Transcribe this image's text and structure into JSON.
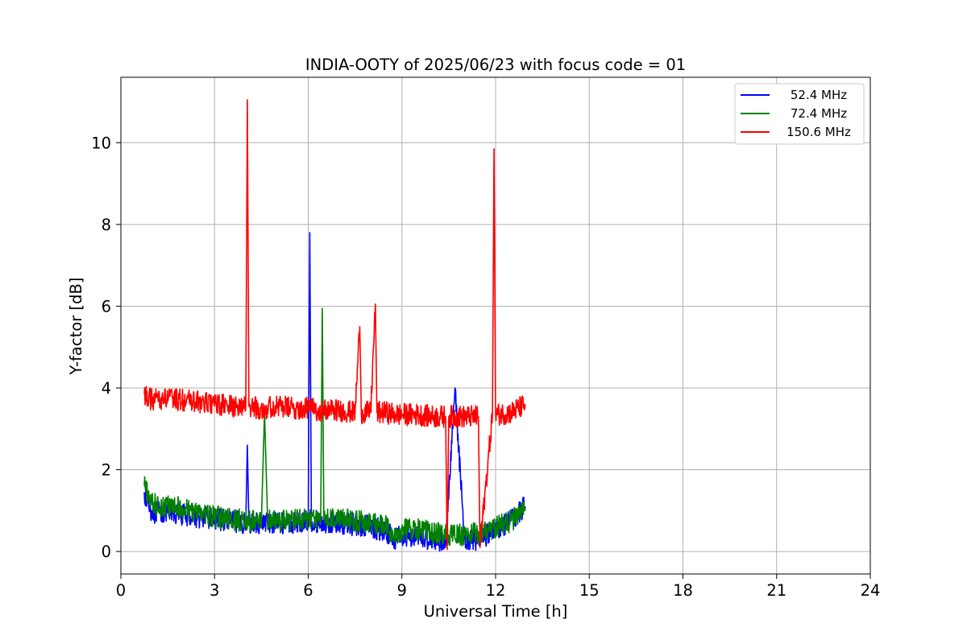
{
  "chart_data": {
    "type": "line",
    "title": "INDIA-OOTY of 2025/06/23 with focus code = 01",
    "xlabel": "Universal Time [h]",
    "ylabel": "Y-factor [dB]",
    "xlim": [
      0,
      24
    ],
    "ylim": [
      -0.55,
      11.6
    ],
    "xticks": [
      0,
      3,
      6,
      9,
      12,
      15,
      18,
      21,
      24
    ],
    "yticks": [
      0,
      2,
      4,
      6,
      8,
      10
    ],
    "grid": true,
    "legend_position": "top-right",
    "series": [
      {
        "name": "52.4 MHz",
        "color": "#0000ff",
        "x": [
          0.75,
          1.0,
          1.5,
          2.0,
          2.5,
          3.0,
          3.5,
          4.0,
          4.05,
          4.1,
          4.5,
          5.0,
          5.5,
          6.0,
          6.05,
          6.1,
          6.5,
          7.0,
          7.5,
          8.0,
          8.5,
          8.8,
          9.0,
          9.5,
          10.0,
          10.4,
          10.7,
          11.0,
          11.5,
          12.0,
          12.5,
          12.95
        ],
        "y": [
          1.45,
          0.95,
          0.95,
          0.9,
          0.85,
          0.8,
          0.75,
          0.7,
          2.6,
          0.7,
          0.7,
          0.7,
          0.7,
          0.75,
          7.8,
          0.75,
          0.7,
          0.7,
          0.65,
          0.6,
          0.5,
          0.3,
          0.4,
          0.35,
          0.3,
          0.25,
          4.0,
          0.3,
          0.3,
          0.55,
          0.75,
          1.1
        ]
      },
      {
        "name": "72.4 MHz",
        "color": "#008000",
        "x": [
          0.75,
          1.0,
          1.5,
          2.0,
          2.5,
          3.0,
          3.5,
          4.0,
          4.5,
          4.6,
          4.7,
          5.0,
          5.5,
          6.0,
          6.4,
          6.45,
          6.5,
          7.0,
          7.5,
          8.0,
          8.5,
          8.8,
          9.0,
          9.5,
          10.0,
          10.5,
          11.0,
          11.5,
          12.0,
          12.5,
          12.95
        ],
        "y": [
          1.6,
          1.15,
          1.1,
          1.05,
          0.95,
          0.85,
          0.8,
          0.75,
          0.75,
          3.4,
          0.75,
          0.75,
          0.75,
          0.8,
          0.8,
          5.95,
          0.8,
          0.8,
          0.75,
          0.7,
          0.6,
          0.3,
          0.55,
          0.55,
          0.45,
          0.4,
          0.4,
          0.45,
          0.6,
          0.75,
          1.0
        ]
      },
      {
        "name": "150.6 MHz",
        "color": "#ff0000",
        "x": [
          0.75,
          1.0,
          1.5,
          2.0,
          2.5,
          3.0,
          3.5,
          4.0,
          4.05,
          4.1,
          4.5,
          5.0,
          5.5,
          6.0,
          6.5,
          7.0,
          7.5,
          7.65,
          7.7,
          8.0,
          8.15,
          8.2,
          8.5,
          8.8,
          9.0,
          9.5,
          10.0,
          10.4,
          10.45,
          10.5,
          11.0,
          11.45,
          11.5,
          11.9,
          11.95,
          12.0,
          12.5,
          12.95
        ],
        "y": [
          3.85,
          3.7,
          3.75,
          3.7,
          3.65,
          3.6,
          3.55,
          3.55,
          11.05,
          3.55,
          3.5,
          3.55,
          3.5,
          3.5,
          3.45,
          3.45,
          3.4,
          5.5,
          3.4,
          3.4,
          6.05,
          3.4,
          3.4,
          3.35,
          3.35,
          3.35,
          3.3,
          3.3,
          0.05,
          3.3,
          3.3,
          3.3,
          0.1,
          3.35,
          9.85,
          3.35,
          3.4,
          3.6
        ]
      }
    ]
  }
}
